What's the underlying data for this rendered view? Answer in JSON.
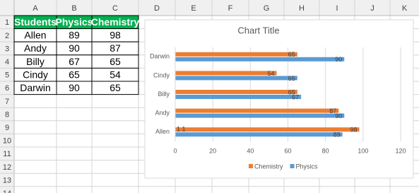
{
  "sheet": {
    "columns": [
      "A",
      "B",
      "C",
      "D",
      "E",
      "F",
      "G",
      "H",
      "I",
      "J",
      "K"
    ],
    "rows": [
      "1",
      "2",
      "3",
      "4",
      "5",
      "6",
      "7",
      "8",
      "9",
      "10",
      "11",
      "12",
      "13",
      "14"
    ]
  },
  "table": {
    "header": [
      "Students",
      "Physics",
      "Chemistry"
    ],
    "rows": [
      [
        "Allen",
        89,
        98
      ],
      [
        "Andy",
        90,
        87
      ],
      [
        "Billy",
        67,
        65
      ],
      [
        "Cindy",
        65,
        54
      ],
      [
        "Darwin",
        90,
        65
      ]
    ]
  },
  "chart_data": {
    "type": "hbar",
    "title": "Chart Title",
    "categories": [
      "Allen",
      "Andy",
      "Billy",
      "Cindy",
      "Darwin"
    ],
    "series": [
      {
        "name": "Chemistry",
        "color": "#ed7d31",
        "values": [
          98,
          87,
          65,
          54,
          65
        ]
      },
      {
        "name": "Physics",
        "color": "#5b9bd5",
        "values": [
          89,
          90,
          67,
          65,
          90
        ]
      }
    ],
    "xlim": [
      0,
      120
    ],
    "xticks": [
      0,
      20,
      40,
      60,
      80,
      100,
      120
    ],
    "grid": true,
    "legend": "bottom",
    "annotations": [
      "1 1"
    ]
  }
}
